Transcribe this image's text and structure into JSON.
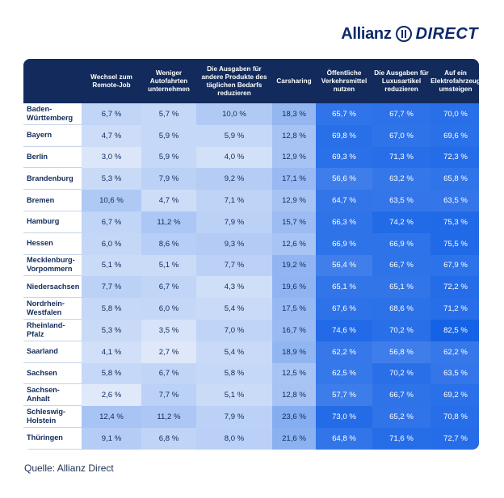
{
  "brand": {
    "name": "Allianz",
    "suffix": "DIRECT"
  },
  "source": "Quelle: Allianz Direct",
  "colors": {
    "header": "#122b5c",
    "text_dark": "#122b5c",
    "low_shade": "#eef3fb",
    "high_shade": "#1562e6"
  },
  "chart_data": {
    "type": "table",
    "columns": [
      "Wechsel zum Remote-Job",
      "Weniger Autofahrten unternehmen",
      "Die Ausgaben für andere Produkte des täglichen Bedarfs reduzieren",
      "Carsharing",
      "Öffentliche Verkehrsmittel nutzen",
      "Die Ausgaben für Luxusartikel reduzieren",
      "Auf ein Elektrofahrzeug umsteigen"
    ],
    "rows": [
      {
        "label": "Baden-Württemberg",
        "display": [
          "6,7 %",
          "5,7 %",
          "10,0 %",
          "18,3 %",
          "65,7 %",
          "67,7 %",
          "70,0 %"
        ],
        "values": [
          6.7,
          5.7,
          10.0,
          18.3,
          65.7,
          67.7,
          70.0
        ]
      },
      {
        "label": "Bayern",
        "display": [
          "4,7 %",
          "5,9 %",
          "5,9 %",
          "12,8 %",
          "69,8 %",
          "67,0 %",
          "69,6 %"
        ],
        "values": [
          4.7,
          5.9,
          5.9,
          12.8,
          69.8,
          67.0,
          69.6
        ]
      },
      {
        "label": "Berlin",
        "display": [
          "3,0 %",
          "5,9 %",
          "4,0 %",
          "12,9 %",
          "69,3 %",
          "71,3 %",
          "72,3 %"
        ],
        "values": [
          3.0,
          5.9,
          4.0,
          12.9,
          69.3,
          71.3,
          72.3
        ]
      },
      {
        "label": "Brandenburg",
        "display": [
          "5,3 %",
          "7,9 %",
          "9,2 %",
          "17,1 %",
          "56,6 %",
          "63,2 %",
          "65,8 %"
        ],
        "values": [
          5.3,
          7.9,
          9.2,
          17.1,
          56.6,
          63.2,
          65.8
        ]
      },
      {
        "label": "Bremen",
        "display": [
          "10,6 %",
          "4,7 %",
          "7,1 %",
          "12,9 %",
          "64,7 %",
          "63,5 %",
          "63,5 %"
        ],
        "values": [
          10.6,
          4.7,
          7.1,
          12.9,
          64.7,
          63.5,
          63.5
        ]
      },
      {
        "label": "Hamburg",
        "display": [
          "6,7 %",
          "11,2 %",
          "7,9 %",
          "15,7 %",
          "66,3 %",
          "74,2 %",
          "75,3 %"
        ],
        "values": [
          6.7,
          11.2,
          7.9,
          15.7,
          66.3,
          74.2,
          75.3
        ]
      },
      {
        "label": "Hessen",
        "display": [
          "6,0 %",
          "8,6 %",
          "9,3 %",
          "12,6 %",
          "66,9 %",
          "66,9 %",
          "75,5 %"
        ],
        "values": [
          6.0,
          8.6,
          9.3,
          12.6,
          66.9,
          66.9,
          75.5
        ]
      },
      {
        "label": "Mecklenburg-Vorpommern",
        "display": [
          "5,1 %",
          "5,1 %",
          "7,7 %",
          "19,2 %",
          "56,4 %",
          "66,7 %",
          "67,9 %"
        ],
        "values": [
          5.1,
          5.1,
          7.7,
          19.2,
          56.4,
          66.7,
          67.9
        ]
      },
      {
        "label": "Niedersachsen",
        "display": [
          "7,7 %",
          "6,7 %",
          "4,3 %",
          "19,6 %",
          "65,1 %",
          "65,1 %",
          "72,2 %"
        ],
        "values": [
          7.7,
          6.7,
          4.3,
          19.6,
          65.1,
          65.1,
          72.2
        ]
      },
      {
        "label": "Nordrhein-Westfalen",
        "display": [
          "5,8 %",
          "6,0 %",
          "5,4 %",
          "17,5 %",
          "67,6 %",
          "68,6 %",
          "71,2 %"
        ],
        "values": [
          5.8,
          6.0,
          5.4,
          17.5,
          67.6,
          68.6,
          71.2
        ]
      },
      {
        "label": "Rheinland-Pfalz",
        "display": [
          "5,3 %",
          "3,5 %",
          "7,0 %",
          "16,7 %",
          "74,6 %",
          "70,2 %",
          "82,5 %"
        ],
        "values": [
          5.3,
          3.5,
          7.0,
          16.7,
          74.6,
          70.2,
          82.5
        ]
      },
      {
        "label": "Saarland",
        "display": [
          "4,1 %",
          "2,7 %",
          "5,4 %",
          "18,9 %",
          "62,2 %",
          "56,8 %",
          "62,2 %"
        ],
        "values": [
          4.1,
          2.7,
          5.4,
          18.9,
          62.2,
          56.8,
          62.2
        ]
      },
      {
        "label": "Sachsen",
        "display": [
          "5,8 %",
          "6,7 %",
          "5,8 %",
          "12,5 %",
          "62,5 %",
          "70,2 %",
          "63,5 %"
        ],
        "values": [
          5.8,
          6.7,
          5.8,
          12.5,
          62.5,
          70.2,
          63.5
        ]
      },
      {
        "label": "Sachsen-Anhalt",
        "display": [
          "2,6 %",
          "7,7 %",
          "5,1 %",
          "12,8 %",
          "57,7 %",
          "66,7 %",
          "69,2 %"
        ],
        "values": [
          2.6,
          7.7,
          5.1,
          12.8,
          57.7,
          66.7,
          69.2
        ]
      },
      {
        "label": "Schleswig-Holstein",
        "display": [
          "12,4 %",
          "11,2 %",
          "7,9 %",
          "23,6 %",
          "73,0 %",
          "65,2 %",
          "70,8 %"
        ],
        "values": [
          12.4,
          11.2,
          7.9,
          23.6,
          73.0,
          65.2,
          70.8
        ]
      },
      {
        "label": "Thüringen",
        "display": [
          "9,1 %",
          "6,8 %",
          "8,0 %",
          "21,6 %",
          "64,8 %",
          "71,6 %",
          "72,7 %"
        ],
        "values": [
          9.1,
          6.8,
          8.0,
          21.6,
          64.8,
          71.6,
          72.7
        ]
      }
    ]
  }
}
